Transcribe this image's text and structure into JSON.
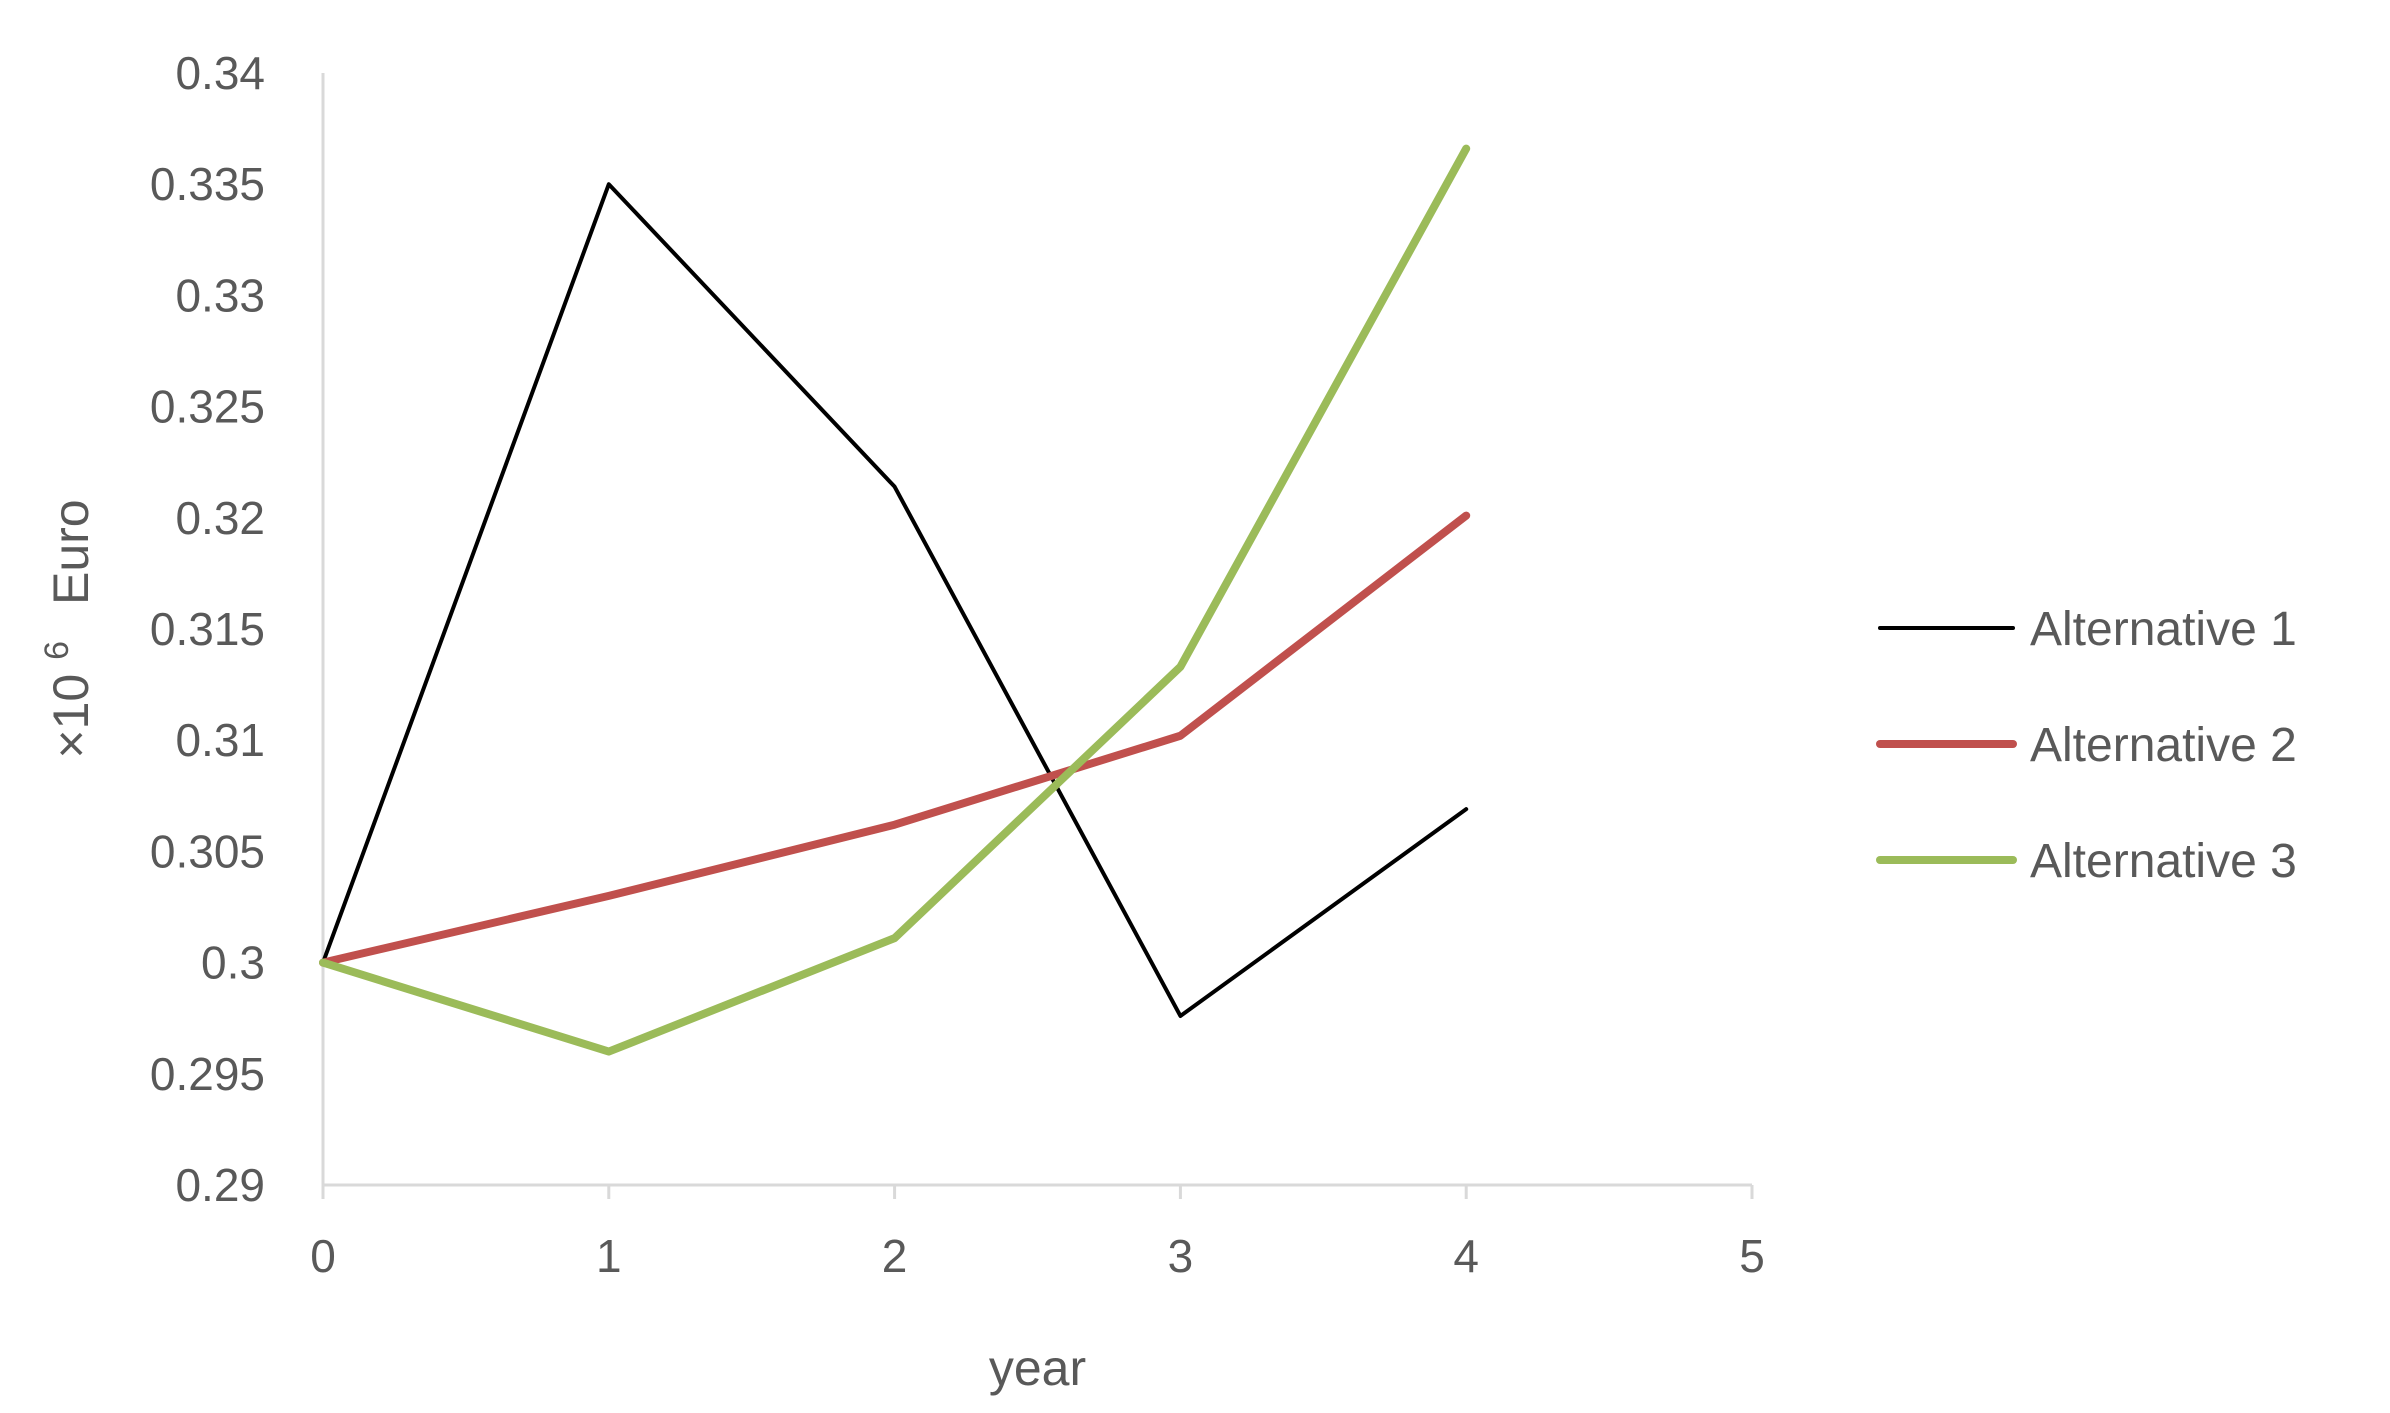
{
  "chart_data": {
    "type": "line",
    "title": "",
    "xlabel": "year",
    "ylabel": {
      "prefix": "×10",
      "exponent": "6",
      "unit": "Euro"
    },
    "xlim": [
      0,
      5
    ],
    "ylim": [
      0.29,
      0.34
    ],
    "x_ticks": [
      "0",
      "1",
      "2",
      "3",
      "4",
      "5"
    ],
    "y_ticks": [
      "0.29",
      "0.295",
      "0.3",
      "0.305",
      "0.31",
      "0.315",
      "0.32",
      "0.325",
      "0.33",
      "0.335",
      "0.34"
    ],
    "grid": false,
    "legend_position": "right",
    "x": [
      0,
      1,
      2,
      3,
      4
    ],
    "series": [
      {
        "name": "Alternative 1",
        "color": "#000000",
        "values": [
          0.3,
          0.335,
          0.3214,
          0.2976,
          0.3069
        ]
      },
      {
        "name": "Alternative 2",
        "color": "#c0504d",
        "values": [
          0.3,
          0.303,
          0.3062,
          0.3102,
          0.3201
        ]
      },
      {
        "name": "Alternative 3",
        "color": "#9bbb59",
        "values": [
          0.3,
          0.296,
          0.3011,
          0.3133,
          0.3366
        ]
      }
    ]
  }
}
